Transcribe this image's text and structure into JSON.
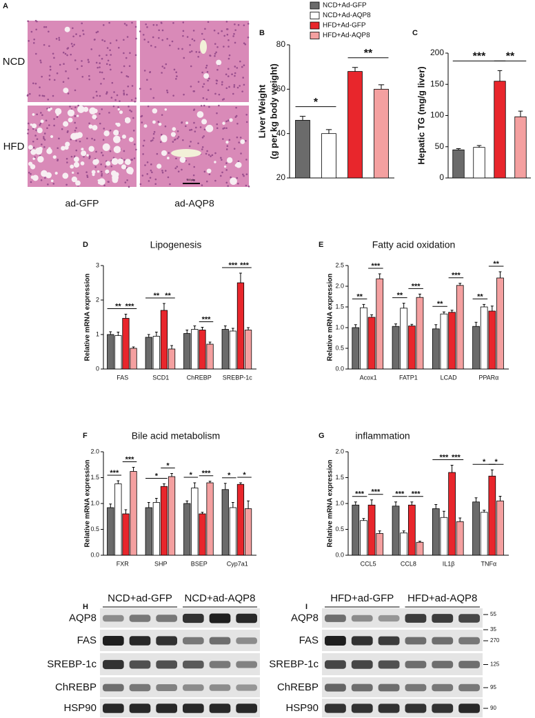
{
  "legend": [
    {
      "name": "NCD+Ad-GFP",
      "color": "#6b6b6b"
    },
    {
      "name": "NCD+Ad-AQP8",
      "color": "#ffffff"
    },
    {
      "name": "HFD+Ad-GFP",
      "color": "#e8262c"
    },
    {
      "name": "HFD+Ad-AQP8",
      "color": "#f4a0a0"
    }
  ],
  "panel_a": {
    "letter": "A",
    "rows": [
      "NCD",
      "HFD"
    ],
    "columns": [
      "ad-GFP",
      "ad-AQP8"
    ],
    "scale_bar": "100μm"
  },
  "chart_data": [
    {
      "type": "bar",
      "panel": "B",
      "ylabel": [
        "Liver Weight",
        "(g per kg body weight)"
      ],
      "ylim": [
        20,
        80
      ],
      "yticks": [
        20,
        40,
        60,
        80
      ],
      "series": [
        {
          "values": [
            46
          ],
          "errors": [
            1.8
          ]
        },
        {
          "values": [
            40
          ],
          "errors": [
            1.8
          ]
        },
        {
          "values": [
            68
          ],
          "errors": [
            1.8
          ]
        },
        {
          "values": [
            60
          ],
          "errors": [
            2
          ]
        }
      ],
      "significance": [
        {
          "from": 0,
          "to": 1,
          "label": "*"
        },
        {
          "from": 2,
          "to": 3,
          "label": "**"
        }
      ]
    },
    {
      "type": "bar",
      "panel": "C",
      "ylabel": [
        "Hepatic TG (mg/g liver)"
      ],
      "ylim": [
        0,
        200
      ],
      "yticks": [
        0,
        50,
        100,
        150,
        200
      ],
      "series": [
        {
          "values": [
            45
          ],
          "errors": [
            2
          ]
        },
        {
          "values": [
            49
          ],
          "errors": [
            3
          ]
        },
        {
          "values": [
            155
          ],
          "errors": [
            17
          ]
        },
        {
          "values": [
            98
          ],
          "errors": [
            9
          ]
        }
      ],
      "significance": [
        {
          "from": 0,
          "to": 2,
          "label": "***"
        },
        {
          "from": 2,
          "to": 3,
          "label": "**"
        }
      ]
    },
    {
      "type": "bar",
      "panel": "D",
      "title": "Lipogenesis",
      "ylabel": [
        "Relative mRNA expression"
      ],
      "categories": [
        "FAS",
        "SCD1",
        "ChREBP",
        "SREBP-1c"
      ],
      "ylim": [
        0,
        3
      ],
      "yticks": [
        0,
        1,
        2,
        3
      ],
      "series": [
        {
          "values": [
            1.0,
            0.92,
            1.03,
            1.15
          ],
          "errors": [
            0.08,
            0.08,
            0.1,
            0.1
          ]
        },
        {
          "values": [
            0.97,
            0.95,
            1.15,
            1.1
          ],
          "errors": [
            0.1,
            0.12,
            0.1,
            0.08
          ]
        },
        {
          "values": [
            1.47,
            1.7,
            1.13,
            2.5
          ],
          "errors": [
            0.12,
            0.2,
            0.08,
            0.28
          ]
        },
        {
          "values": [
            0.6,
            0.58,
            0.72,
            1.13
          ],
          "errors": [
            0.04,
            0.1,
            0.06,
            0.07
          ]
        }
      ],
      "significance": [
        {
          "category": 0,
          "from": 0,
          "to": 2,
          "label": "**"
        },
        {
          "category": 0,
          "from": 2,
          "to": 3,
          "label": "***"
        },
        {
          "category": 1,
          "from": 0,
          "to": 2,
          "label": "**"
        },
        {
          "category": 1,
          "from": 2,
          "to": 3,
          "label": "**"
        },
        {
          "category": 2,
          "from": 2,
          "to": 3,
          "label": "***"
        },
        {
          "category": 3,
          "from": 0,
          "to": 2,
          "label": "***"
        },
        {
          "category": 3,
          "from": 2,
          "to": 3,
          "label": "***"
        }
      ]
    },
    {
      "type": "bar",
      "panel": "E",
      "title": "Fatty acid oxidation",
      "ylabel": [
        "Relative mRNA expression"
      ],
      "categories": [
        "Acox1",
        "FATP1",
        "LCAD",
        "PPARα"
      ],
      "ylim": [
        0,
        2.5
      ],
      "yticks": [
        {
          "value": 0,
          "label": "0.0"
        },
        0.5,
        {
          "value": 1,
          "label": "1.0"
        },
        1.5,
        {
          "value": 2,
          "label": "2.0"
        },
        2.5
      ],
      "series": [
        {
          "values": [
            1.0,
            1.03,
            0.97,
            1.03
          ],
          "errors": [
            0.07,
            0.06,
            0.1,
            0.1
          ]
        },
        {
          "values": [
            1.48,
            1.47,
            1.33,
            1.5
          ],
          "errors": [
            0.08,
            0.12,
            0.05,
            0.06
          ]
        },
        {
          "values": [
            1.25,
            1.04,
            1.37,
            1.4
          ],
          "errors": [
            0.06,
            0.04,
            0.05,
            0.12
          ]
        },
        {
          "values": [
            2.18,
            1.73,
            2.02,
            2.2
          ],
          "errors": [
            0.12,
            0.08,
            0.05,
            0.15
          ]
        }
      ],
      "significance": [
        {
          "category": 0,
          "from": 0,
          "to": 1,
          "label": "**"
        },
        {
          "category": 0,
          "from": 2,
          "to": 3,
          "label": "***"
        },
        {
          "category": 1,
          "from": 0,
          "to": 1,
          "label": "**"
        },
        {
          "category": 1,
          "from": 2,
          "to": 3,
          "label": "***"
        },
        {
          "category": 2,
          "from": 0,
          "to": 1,
          "label": "**"
        },
        {
          "category": 2,
          "from": 2,
          "to": 3,
          "label": "***"
        },
        {
          "category": 3,
          "from": 0,
          "to": 1,
          "label": "**"
        },
        {
          "category": 3,
          "from": 2,
          "to": 3,
          "label": "**"
        }
      ]
    },
    {
      "type": "bar",
      "panel": "F",
      "title": "Bile acid metabolism",
      "ylabel": [
        "Relative mRNA expression"
      ],
      "categories": [
        "FXR",
        "SHP",
        "BSEP",
        "Cyp7a1"
      ],
      "ylim": [
        0,
        2
      ],
      "yticks": [
        {
          "value": 0,
          "label": "0.0"
        },
        0.5,
        {
          "value": 1,
          "label": "1.0"
        },
        1.5,
        {
          "value": 2,
          "label": "2.0"
        }
      ],
      "series": [
        {
          "values": [
            0.92,
            0.92,
            1.0,
            1.27
          ],
          "errors": [
            0.07,
            0.1,
            0.05,
            0.12
          ]
        },
        {
          "values": [
            1.38,
            1.02,
            1.3,
            0.92
          ],
          "errors": [
            0.06,
            0.08,
            0.1,
            0.1
          ]
        },
        {
          "values": [
            0.8,
            1.33,
            0.8,
            1.37
          ],
          "errors": [
            0.08,
            0.05,
            0.03,
            0.03
          ]
        },
        {
          "values": [
            1.62,
            1.52,
            1.4,
            0.9
          ],
          "errors": [
            0.08,
            0.06,
            0.03,
            0.15
          ]
        }
      ],
      "significance": [
        {
          "category": 0,
          "from": 0,
          "to": 1,
          "label": "***"
        },
        {
          "category": 0,
          "from": 2,
          "to": 3,
          "label": "***"
        },
        {
          "category": 1,
          "from": 0,
          "to": 2,
          "label": "*"
        },
        {
          "category": 1,
          "from": 2,
          "to": 3,
          "label": "*"
        },
        {
          "category": 2,
          "from": 0,
          "to": 1,
          "label": "*"
        },
        {
          "category": 2,
          "from": 2,
          "to": 3,
          "label": "***"
        },
        {
          "category": 3,
          "from": 0,
          "to": 1,
          "label": "*"
        },
        {
          "category": 3,
          "from": 2,
          "to": 3,
          "label": "*"
        }
      ]
    },
    {
      "type": "bar",
      "panel": "G",
      "title": "inflammation",
      "ylabel": [
        "Relative mRNA expression"
      ],
      "categories": [
        "CCL5",
        "CCL8",
        "IL1β",
        "TNFα"
      ],
      "ylim": [
        0,
        2
      ],
      "yticks": [
        {
          "value": 0,
          "label": "0.0"
        },
        0.5,
        {
          "value": 1,
          "label": "1.0"
        },
        1.5,
        {
          "value": 2,
          "label": "2.0"
        }
      ],
      "series": [
        {
          "values": [
            0.97,
            0.95,
            0.9,
            1.03
          ],
          "errors": [
            0.06,
            0.08,
            0.08,
            0.08
          ]
        },
        {
          "values": [
            0.67,
            0.43,
            0.73,
            0.83
          ],
          "errors": [
            0.04,
            0.04,
            0.12,
            0.04
          ]
        },
        {
          "values": [
            0.97,
            0.97,
            1.6,
            1.53
          ],
          "errors": [
            0.1,
            0.06,
            0.14,
            0.12
          ]
        },
        {
          "values": [
            0.42,
            0.25,
            0.65,
            1.05
          ],
          "errors": [
            0.05,
            0.02,
            0.07,
            0.09
          ]
        }
      ],
      "significance": [
        {
          "category": 0,
          "from": 0,
          "to": 1,
          "label": "***"
        },
        {
          "category": 0,
          "from": 2,
          "to": 3,
          "label": "***"
        },
        {
          "category": 1,
          "from": 0,
          "to": 1,
          "label": "***"
        },
        {
          "category": 1,
          "from": 2,
          "to": 3,
          "label": "***"
        },
        {
          "category": 2,
          "from": 0,
          "to": 2,
          "label": "***"
        },
        {
          "category": 2,
          "from": 2,
          "to": 3,
          "label": "***"
        },
        {
          "category": 3,
          "from": 0,
          "to": 2,
          "label": "*"
        },
        {
          "category": 3,
          "from": 2,
          "to": 3,
          "label": "*"
        }
      ]
    }
  ],
  "blots": [
    {
      "panel": "H",
      "groups": [
        "NCD+ad-GFP",
        "NCD+ad-AQP8"
      ],
      "rows": [
        "AQP8",
        "FAS",
        "SREBP-1c",
        "ChREBP",
        "HSP90"
      ]
    },
    {
      "panel": "I",
      "groups": [
        "HFD+ad-GFP",
        "HFD+ad-AQP8"
      ],
      "rows": [
        "AQP8",
        "FAS",
        "SREBP-1c",
        "ChREBP",
        "HSP90"
      ],
      "markers": [
        [
          55,
          35
        ],
        [
          270
        ],
        [
          125
        ],
        [
          95
        ],
        [
          90
        ]
      ]
    }
  ]
}
